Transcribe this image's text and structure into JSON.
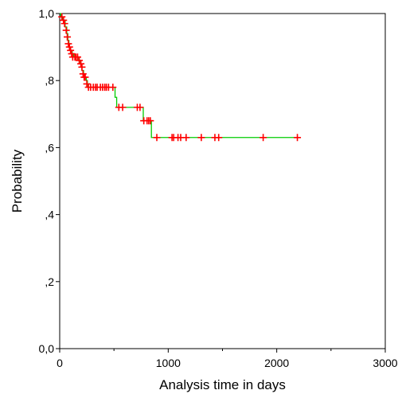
{
  "chart_data": {
    "type": "line",
    "title": "",
    "xlabel": "Analysis time in days",
    "ylabel": "Probability",
    "xlim": [
      0,
      3000
    ],
    "ylim": [
      0,
      1
    ],
    "x_ticks": [
      {
        "value": 0,
        "label": "0"
      },
      {
        "value": 1000,
        "label": "1000"
      },
      {
        "value": 2000,
        "label": "2000"
      },
      {
        "value": 3000,
        "label": "3000"
      }
    ],
    "x_minor_ticks": [
      500,
      1500,
      2500
    ],
    "y_ticks": [
      {
        "value": 0.0,
        "label": "0,0"
      },
      {
        "value": 0.2,
        "label": ",2"
      },
      {
        "value": 0.4,
        "label": ",4"
      },
      {
        "value": 0.6,
        "label": ",6"
      },
      {
        "value": 0.8,
        "label": ",8"
      },
      {
        "value": 1.0,
        "label": "1,0"
      }
    ],
    "grid": false,
    "survival_curve": {
      "color": "#00cc00",
      "steps": [
        {
          "x": 0,
          "y": 1.0
        },
        {
          "x": 10,
          "y": 0.99
        },
        {
          "x": 30,
          "y": 0.98
        },
        {
          "x": 50,
          "y": 0.96
        },
        {
          "x": 65,
          "y": 0.94
        },
        {
          "x": 75,
          "y": 0.92
        },
        {
          "x": 85,
          "y": 0.9
        },
        {
          "x": 100,
          "y": 0.89
        },
        {
          "x": 115,
          "y": 0.88
        },
        {
          "x": 130,
          "y": 0.87
        },
        {
          "x": 175,
          "y": 0.86
        },
        {
          "x": 190,
          "y": 0.85
        },
        {
          "x": 205,
          "y": 0.83
        },
        {
          "x": 220,
          "y": 0.81
        },
        {
          "x": 245,
          "y": 0.8
        },
        {
          "x": 255,
          "y": 0.78
        },
        {
          "x": 510,
          "y": 0.75
        },
        {
          "x": 525,
          "y": 0.72
        },
        {
          "x": 770,
          "y": 0.68
        },
        {
          "x": 845,
          "y": 0.63
        },
        {
          "x": 2190,
          "y": 0.63
        }
      ]
    },
    "censored_points": {
      "marker": "+",
      "color": "#ff0000",
      "points": [
        [
          20,
          0.99
        ],
        [
          35,
          0.98
        ],
        [
          45,
          0.97
        ],
        [
          60,
          0.95
        ],
        [
          70,
          0.93
        ],
        [
          80,
          0.91
        ],
        [
          90,
          0.9
        ],
        [
          100,
          0.89
        ],
        [
          110,
          0.88
        ],
        [
          120,
          0.87
        ],
        [
          140,
          0.87
        ],
        [
          150,
          0.87
        ],
        [
          165,
          0.87
        ],
        [
          180,
          0.86
        ],
        [
          195,
          0.85
        ],
        [
          205,
          0.84
        ],
        [
          215,
          0.82
        ],
        [
          225,
          0.81
        ],
        [
          235,
          0.81
        ],
        [
          250,
          0.79
        ],
        [
          265,
          0.78
        ],
        [
          285,
          0.78
        ],
        [
          310,
          0.78
        ],
        [
          330,
          0.78
        ],
        [
          345,
          0.78
        ],
        [
          375,
          0.78
        ],
        [
          395,
          0.78
        ],
        [
          415,
          0.78
        ],
        [
          430,
          0.78
        ],
        [
          450,
          0.78
        ],
        [
          490,
          0.78
        ],
        [
          545,
          0.72
        ],
        [
          580,
          0.72
        ],
        [
          715,
          0.72
        ],
        [
          740,
          0.72
        ],
        [
          775,
          0.68
        ],
        [
          805,
          0.68
        ],
        [
          820,
          0.68
        ],
        [
          835,
          0.68
        ],
        [
          895,
          0.63
        ],
        [
          1035,
          0.63
        ],
        [
          1050,
          0.63
        ],
        [
          1090,
          0.63
        ],
        [
          1115,
          0.63
        ],
        [
          1165,
          0.63
        ],
        [
          1305,
          0.63
        ],
        [
          1430,
          0.63
        ],
        [
          1465,
          0.63
        ],
        [
          1875,
          0.63
        ],
        [
          2190,
          0.63
        ]
      ]
    }
  }
}
